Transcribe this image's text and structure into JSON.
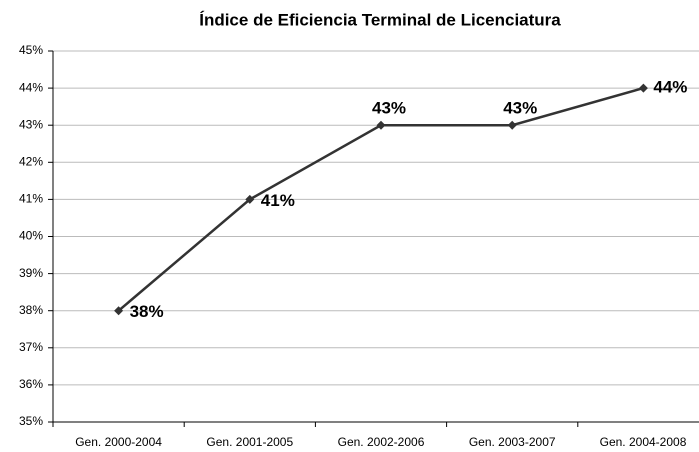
{
  "chart_data": {
    "type": "line",
    "title": "Índice de Eficiencia Terminal de Licenciatura",
    "categories": [
      "Gen. 2000-2004",
      "Gen. 2001-2005",
      "Gen. 2002-2006",
      "Gen. 2003-2007",
      "Gen. 2004-2008"
    ],
    "values": [
      38,
      41,
      43,
      43,
      44
    ],
    "value_labels": [
      "38%",
      "41%",
      "43%",
      "43%",
      "44%"
    ],
    "color": "#333333",
    "ylim": [
      35,
      45
    ],
    "yticks": [
      {
        "value": 35,
        "label": "35%"
      },
      {
        "value": 36,
        "label": "36%"
      },
      {
        "value": 37,
        "label": "37%"
      },
      {
        "value": 38,
        "label": "38%"
      },
      {
        "value": 39,
        "label": "39%"
      },
      {
        "value": 40,
        "label": "40%"
      },
      {
        "value": 41,
        "label": "41%"
      },
      {
        "value": 42,
        "label": "42%"
      },
      {
        "value": 43,
        "label": "43%"
      },
      {
        "value": 44,
        "label": "44%"
      },
      {
        "value": 45,
        "label": "45%"
      }
    ],
    "grid": true
  }
}
